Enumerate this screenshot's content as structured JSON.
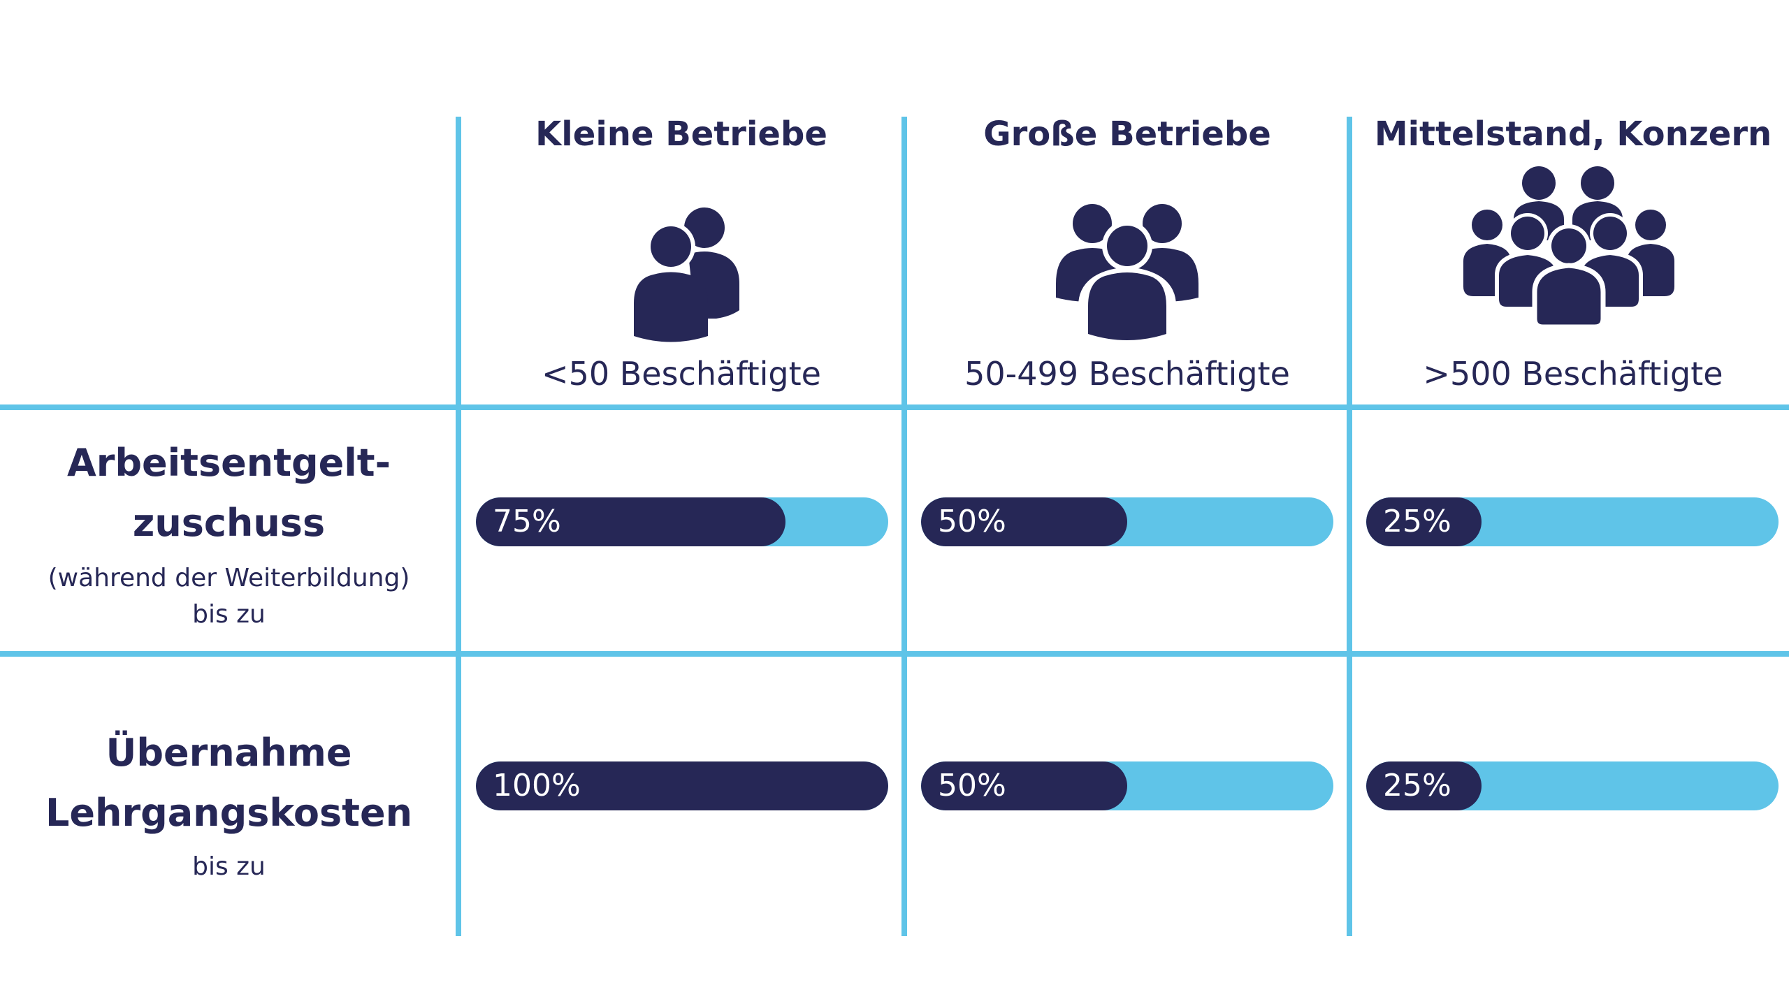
{
  "colors": {
    "dark": "#262756",
    "accent": "#5fc4e8",
    "background": "#ffffff"
  },
  "columns": [
    {
      "title": "Kleine Betriebe",
      "subtitle": "<50 Beschäftigte",
      "icon": "two-people-icon"
    },
    {
      "title": "Große Betriebe",
      "subtitle": "50-499 Beschäftigte",
      "icon": "three-people-icon"
    },
    {
      "title": "Mittelstand, Konzern",
      "subtitle": ">500 Beschäftigte",
      "icon": "crowd-icon"
    }
  ],
  "rows": [
    {
      "title_line1": "Arbeitsentgelt-",
      "title_line2": "zuschuss",
      "note_line1": "(während der Weiterbildung)",
      "note_line2": "bis zu"
    },
    {
      "title_line1": "Übernahme",
      "title_line2": "Lehrgangskosten",
      "note_line1": "bis zu"
    }
  ],
  "chart_data": {
    "type": "bar",
    "categories": [
      "Kleine Betriebe",
      "Große Betriebe",
      "Mittelstand, Konzern"
    ],
    "series": [
      {
        "name": "Arbeitsentgeltzuschuss",
        "values": [
          75,
          50,
          25
        ],
        "labels": [
          "75%",
          "50%",
          "25%"
        ]
      },
      {
        "name": "Übernahme Lehrgangskosten",
        "values": [
          100,
          50,
          25
        ],
        "labels": [
          "100%",
          "50%",
          "25%"
        ]
      }
    ],
    "ylim": [
      0,
      100
    ]
  }
}
